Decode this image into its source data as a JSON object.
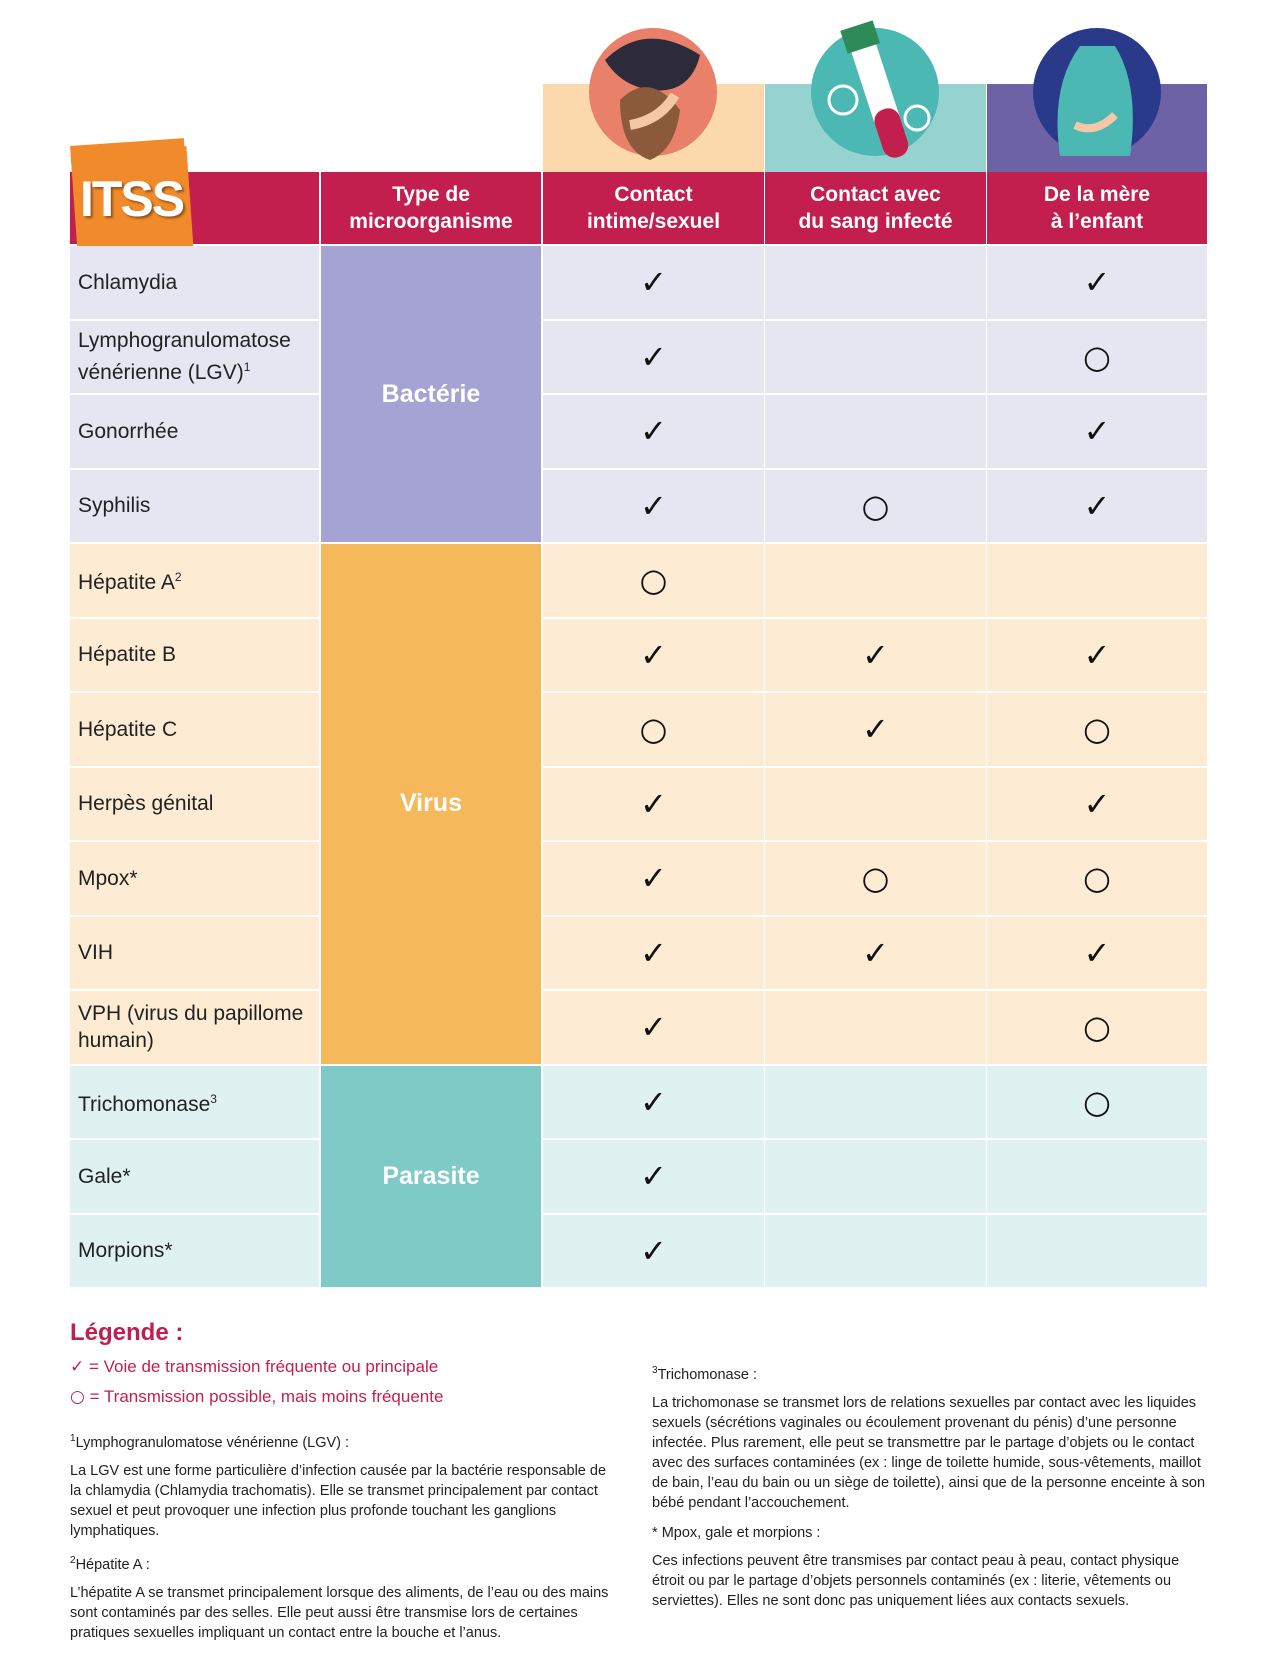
{
  "header": {
    "logo": "ITSS",
    "columns": [
      "Type de\nmicroorganisme",
      "Contact\nintime/sexuel",
      "Contact avec\ndu sang infecté",
      "De la mère\nà l’enfant"
    ]
  },
  "groups": [
    {
      "type": "Bactérie",
      "rows": [
        {
          "name": "Chlamydia",
          "cells": [
            "✓",
            null,
            "✓"
          ]
        },
        {
          "name": "Lymphogranulomatose vénérienne (LGV)",
          "note": "1",
          "cells": [
            "✓",
            null,
            "○"
          ]
        },
        {
          "name": "Gonorrhée",
          "cells": [
            "✓",
            null,
            "✓"
          ]
        },
        {
          "name": "Syphilis",
          "cells": [
            "✓",
            "○",
            "✓"
          ]
        }
      ]
    },
    {
      "type": "Virus",
      "rows": [
        {
          "name": "Hépatite A",
          "note": "2",
          "cells": [
            "○",
            null,
            null
          ]
        },
        {
          "name": "Hépatite B",
          "cells": [
            "✓",
            "✓",
            "✓"
          ]
        },
        {
          "name": "Hépatite C",
          "cells": [
            "○",
            "✓",
            "○"
          ]
        },
        {
          "name": "Herpès génital",
          "cells": [
            "✓",
            null,
            "✓"
          ]
        },
        {
          "name": "Mpox*",
          "cells": [
            "✓",
            "○",
            "○"
          ]
        },
        {
          "name": "VIH",
          "cells": [
            "✓",
            "✓",
            "✓"
          ]
        },
        {
          "name": "VPH (virus du papillome humain)",
          "cells": [
            "✓",
            null,
            "○"
          ]
        }
      ]
    },
    {
      "type": "Parasite",
      "rows": [
        {
          "name": "Trichomonase",
          "note": "3",
          "cells": [
            "✓",
            null,
            "○"
          ]
        },
        {
          "name": "Gale*",
          "cells": [
            "✓",
            null,
            null
          ]
        },
        {
          "name": "Morpions*",
          "cells": [
            "✓",
            null,
            null
          ]
        }
      ]
    }
  ],
  "legend": {
    "title": "Légende :",
    "items": [
      {
        "symbol": "✓",
        "text": "= Voie de transmission fréquente ou principale"
      },
      {
        "symbol": "○",
        "text": "= Transmission possible, mais moins fréquente"
      }
    ]
  },
  "footnotes": [
    {
      "mark": "1",
      "title": "Lymphogranulomatose vénérienne (LGV) :",
      "text": "La LGV est une forme particulière d’infection causée par la bactérie responsable de la chlamydia (Chlamydia trachomatis). Elle se transmet principalement par contact sexuel et peut provoquer une infection plus profonde touchant les ganglions lymphatiques."
    },
    {
      "mark": "2",
      "title": "Hépatite A :",
      "text": "L’hépatite A se transmet principalement lorsque des aliments, de l’eau ou des mains sont contaminés par des selles. Elle peut aussi être transmise lors de certaines pratiques sexuelles impliquant un contact entre la bouche et l’anus."
    },
    {
      "mark": "3",
      "title": "Trichomonase :",
      "text": "La trichomonase se transmet lors de relations sexuelles par contact avec les liquides sexuels (sécrétions vaginales ou écoulement provenant du pénis) d’une personne infectée. Plus rarement, elle peut se transmettre par le partage d’objets ou le contact avec des surfaces contaminées (ex : linge de toilette humide, sous-vêtements, maillot de bain, l’eau du bain ou un siège de toilette), ainsi que de la personne enceinte à son bébé pendant l’accouchement."
    },
    {
      "mark": "*",
      "title": "Mpox, gale et morpions :",
      "text": "Ces infections peuvent être transmises par contact peau à peau, contact physique étroit ou par le partage d’objets personnels contaminés (ex : literie, vêtements ou serviettes). Elles ne sont donc pas uniquement liées aux contacts sexuels."
    }
  ]
}
